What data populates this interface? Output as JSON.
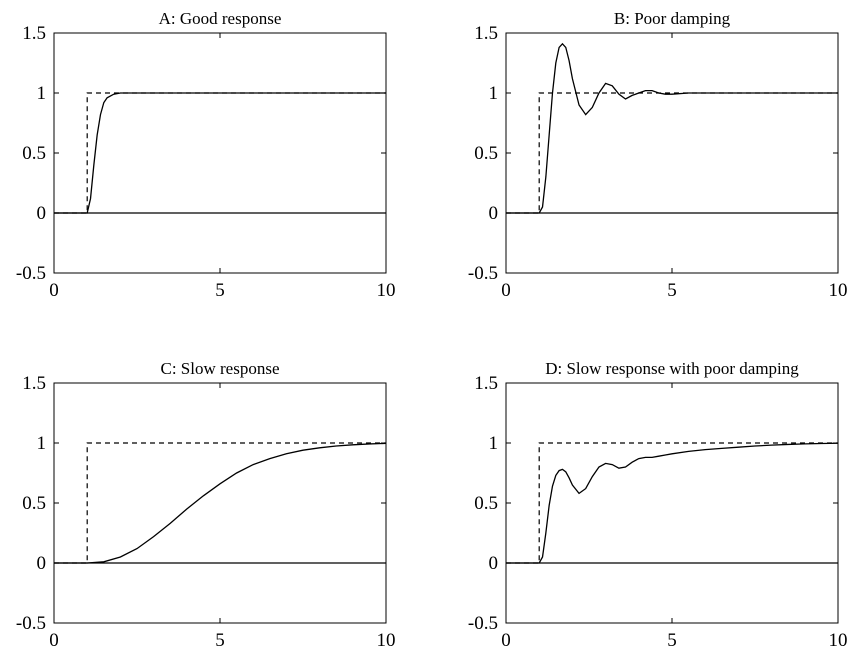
{
  "chart_data": [
    {
      "type": "line",
      "title": "A: Good response",
      "xlim": [
        0,
        10
      ],
      "ylim": [
        -0.5,
        1.5
      ],
      "xticks": [
        0,
        5,
        10
      ],
      "yticks": [
        -0.5,
        0,
        0.5,
        1,
        1.5
      ],
      "xtick_labels": [
        "0",
        "5",
        "10"
      ],
      "ytick_labels": [
        "-0.5",
        "0",
        "0.5",
        "1",
        "1.5"
      ],
      "grid": false,
      "series": [
        {
          "style": "dashed",
          "x": [
            0,
            1,
            1,
            10
          ],
          "y": [
            0,
            0,
            1,
            1
          ]
        },
        {
          "style": "solid",
          "x": [
            0,
            1,
            1.1,
            1.2,
            1.3,
            1.4,
            1.5,
            1.6,
            1.8,
            2.0,
            2.5,
            10
          ],
          "y": [
            0,
            0,
            0.12,
            0.4,
            0.65,
            0.82,
            0.92,
            0.96,
            0.99,
            1.0,
            1.0,
            1.0
          ]
        },
        {
          "style": "zero-line",
          "x": [
            0,
            10
          ],
          "y": [
            0,
            0
          ]
        }
      ]
    },
    {
      "type": "line",
      "title": "B: Poor damping",
      "xlim": [
        0,
        10
      ],
      "ylim": [
        -0.5,
        1.5
      ],
      "xticks": [
        0,
        5,
        10
      ],
      "yticks": [
        -0.5,
        0,
        0.5,
        1,
        1.5
      ],
      "xtick_labels": [
        "0",
        "5",
        "10"
      ],
      "ytick_labels": [
        "-0.5",
        "0",
        "0.5",
        "1",
        "1.5"
      ],
      "grid": false,
      "series": [
        {
          "style": "dashed",
          "x": [
            0,
            1,
            1,
            10
          ],
          "y": [
            0,
            0,
            1,
            1
          ]
        },
        {
          "style": "solid",
          "x": [
            0,
            1,
            1.1,
            1.2,
            1.3,
            1.4,
            1.5,
            1.6,
            1.7,
            1.8,
            1.9,
            2.0,
            2.2,
            2.4,
            2.6,
            2.8,
            3.0,
            3.2,
            3.4,
            3.6,
            3.8,
            4.0,
            4.2,
            4.4,
            4.6,
            4.8,
            5.0,
            5.5,
            6.0,
            7.0,
            10
          ],
          "y": [
            0,
            0,
            0.05,
            0.3,
            0.65,
            1.0,
            1.25,
            1.38,
            1.41,
            1.38,
            1.27,
            1.12,
            0.9,
            0.82,
            0.88,
            1.0,
            1.08,
            1.06,
            0.99,
            0.95,
            0.98,
            1.0,
            1.02,
            1.02,
            1.0,
            0.99,
            0.99,
            1.0,
            1.0,
            1.0,
            1.0
          ]
        },
        {
          "style": "zero-line",
          "x": [
            0,
            10
          ],
          "y": [
            0,
            0
          ]
        }
      ]
    },
    {
      "type": "line",
      "title": "C: Slow response",
      "xlim": [
        0,
        10
      ],
      "ylim": [
        -0.5,
        1.5
      ],
      "xticks": [
        0,
        5,
        10
      ],
      "yticks": [
        -0.5,
        0,
        0.5,
        1,
        1.5
      ],
      "xtick_labels": [
        "0",
        "5",
        "10"
      ],
      "ytick_labels": [
        "-0.5",
        "0",
        "0.5",
        "1",
        "1.5"
      ],
      "grid": false,
      "series": [
        {
          "style": "dashed",
          "x": [
            0,
            1,
            1,
            10
          ],
          "y": [
            0,
            0,
            1,
            1
          ]
        },
        {
          "style": "solid",
          "x": [
            0,
            1,
            1.5,
            2,
            2.5,
            3,
            3.5,
            4,
            4.5,
            5,
            5.5,
            6,
            6.5,
            7,
            7.5,
            8,
            8.5,
            9,
            9.5,
            10
          ],
          "y": [
            0,
            0,
            0.01,
            0.05,
            0.12,
            0.22,
            0.33,
            0.45,
            0.56,
            0.66,
            0.75,
            0.82,
            0.87,
            0.91,
            0.94,
            0.96,
            0.975,
            0.985,
            0.992,
            0.997
          ]
        },
        {
          "style": "zero-line",
          "x": [
            0,
            10
          ],
          "y": [
            0,
            0
          ]
        }
      ]
    },
    {
      "type": "line",
      "title": "D: Slow response with poor damping",
      "xlim": [
        0,
        10
      ],
      "ylim": [
        -0.5,
        1.5
      ],
      "xticks": [
        0,
        5,
        10
      ],
      "yticks": [
        -0.5,
        0,
        0.5,
        1,
        1.5
      ],
      "xtick_labels": [
        "0",
        "5",
        "10"
      ],
      "ytick_labels": [
        "-0.5",
        "0",
        "0.5",
        "1",
        "1.5"
      ],
      "grid": false,
      "series": [
        {
          "style": "dashed",
          "x": [
            0,
            1,
            1,
            10
          ],
          "y": [
            0,
            0,
            1,
            1
          ]
        },
        {
          "style": "solid",
          "x": [
            0,
            1,
            1.1,
            1.2,
            1.3,
            1.4,
            1.5,
            1.6,
            1.7,
            1.8,
            1.9,
            2.0,
            2.2,
            2.4,
            2.6,
            2.8,
            3.0,
            3.2,
            3.4,
            3.6,
            3.8,
            4.0,
            4.2,
            4.4,
            4.6,
            4.8,
            5.0,
            5.5,
            6.0,
            6.5,
            7.0,
            7.5,
            8.0,
            8.5,
            9.0,
            9.5,
            10
          ],
          "y": [
            0,
            0,
            0.05,
            0.25,
            0.48,
            0.64,
            0.73,
            0.77,
            0.78,
            0.76,
            0.71,
            0.65,
            0.58,
            0.62,
            0.72,
            0.8,
            0.83,
            0.82,
            0.79,
            0.8,
            0.84,
            0.87,
            0.88,
            0.88,
            0.89,
            0.9,
            0.91,
            0.93,
            0.945,
            0.955,
            0.965,
            0.975,
            0.982,
            0.988,
            0.993,
            0.996,
            0.998
          ]
        },
        {
          "style": "zero-line",
          "x": [
            0,
            10
          ],
          "y": [
            0,
            0
          ]
        }
      ]
    }
  ]
}
